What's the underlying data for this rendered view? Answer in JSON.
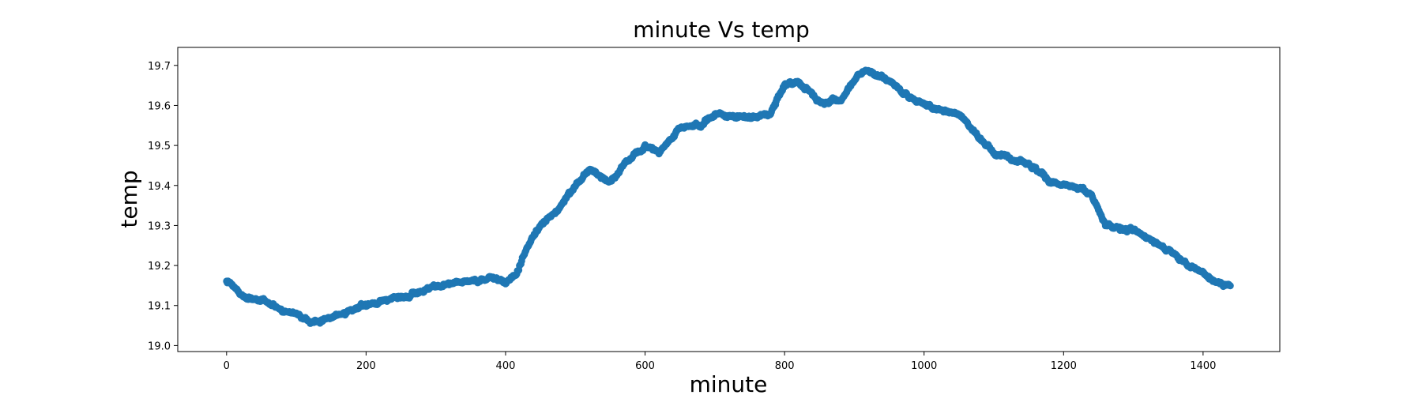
{
  "chart_data": {
    "type": "scatter",
    "title": "minute Vs temp",
    "xlabel": "minute",
    "ylabel": "temp",
    "xlim": [
      -70,
      1510
    ],
    "ylim": [
      18.985,
      19.745
    ],
    "xticks": [
      0,
      200,
      400,
      600,
      800,
      1000,
      1200,
      1400
    ],
    "yticks": [
      19.0,
      19.1,
      19.2,
      19.3,
      19.4,
      19.5,
      19.6,
      19.7
    ],
    "grid": false,
    "legend": "none",
    "marker_color": "#1f77b4",
    "x_range": [
      0,
      1439
    ],
    "trend": [
      [
        0,
        19.16
      ],
      [
        20,
        19.13
      ],
      [
        50,
        19.11
      ],
      [
        80,
        19.09
      ],
      [
        100,
        19.08
      ],
      [
        120,
        19.06
      ],
      [
        150,
        19.07
      ],
      [
        180,
        19.09
      ],
      [
        220,
        19.11
      ],
      [
        260,
        19.13
      ],
      [
        300,
        19.15
      ],
      [
        350,
        19.16
      ],
      [
        380,
        19.17
      ],
      [
        400,
        19.16
      ],
      [
        415,
        19.18
      ],
      [
        430,
        19.24
      ],
      [
        450,
        19.3
      ],
      [
        480,
        19.35
      ],
      [
        500,
        19.4
      ],
      [
        520,
        19.44
      ],
      [
        550,
        19.41
      ],
      [
        570,
        19.45
      ],
      [
        600,
        19.5
      ],
      [
        620,
        19.48
      ],
      [
        650,
        19.55
      ],
      [
        680,
        19.55
      ],
      [
        700,
        19.58
      ],
      [
        750,
        19.57
      ],
      [
        780,
        19.58
      ],
      [
        800,
        19.65
      ],
      [
        820,
        19.66
      ],
      [
        850,
        19.61
      ],
      [
        880,
        19.61
      ],
      [
        900,
        19.67
      ],
      [
        920,
        19.69
      ],
      [
        950,
        19.66
      ],
      [
        980,
        19.62
      ],
      [
        1000,
        19.6
      ],
      [
        1050,
        19.58
      ],
      [
        1100,
        19.48
      ],
      [
        1150,
        19.46
      ],
      [
        1180,
        19.41
      ],
      [
        1200,
        19.4
      ],
      [
        1240,
        19.38
      ],
      [
        1260,
        19.3
      ],
      [
        1300,
        19.29
      ],
      [
        1340,
        19.25
      ],
      [
        1380,
        19.2
      ],
      [
        1410,
        19.17
      ],
      [
        1439,
        19.15
      ]
    ]
  }
}
